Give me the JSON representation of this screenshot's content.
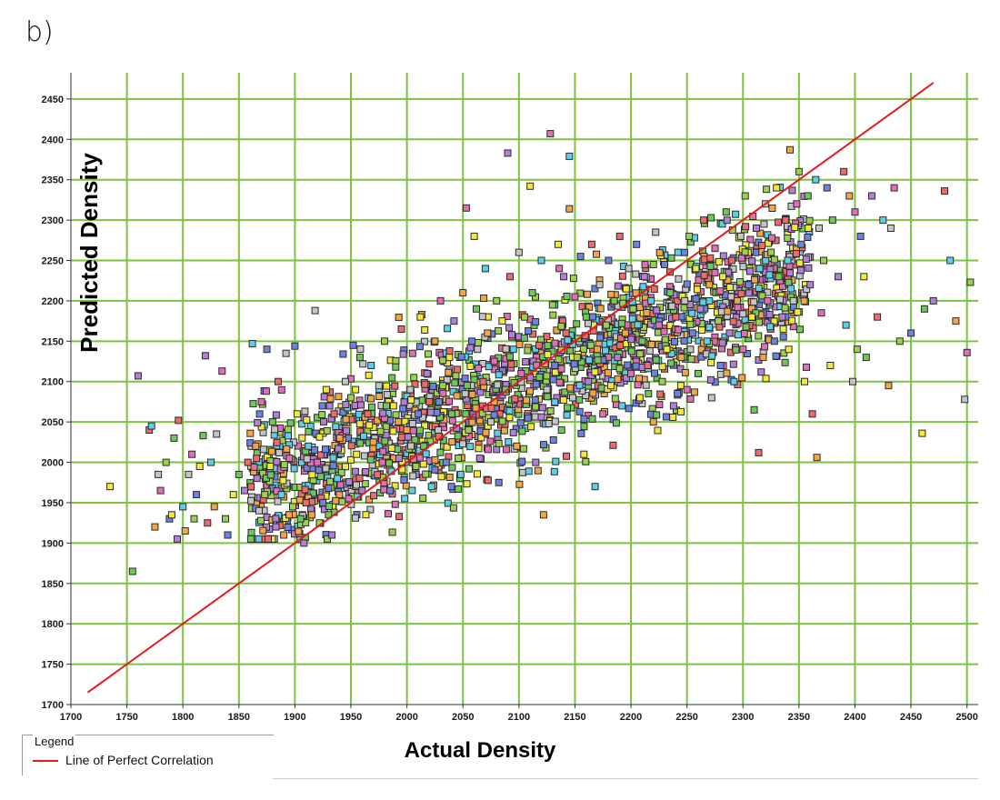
{
  "panel_label": "b)",
  "chart_data": {
    "type": "scatter",
    "title": "",
    "xlabel": "Actual Density",
    "ylabel": "Predicted Density",
    "xlim": [
      1700,
      2510
    ],
    "ylim": [
      1700,
      2460
    ],
    "x_ticks": [
      1700,
      1750,
      1800,
      1850,
      1900,
      1950,
      2000,
      2050,
      2100,
      2150,
      2200,
      2250,
      2300,
      2350,
      2400,
      2450,
      2500
    ],
    "y_ticks": [
      1700,
      1750,
      1800,
      1850,
      1900,
      1950,
      2000,
      2050,
      2100,
      2150,
      2200,
      2250,
      2300,
      2350,
      2400,
      2450
    ],
    "grid": true,
    "grid_color": "#7cc243",
    "point_colors": [
      "#f2e93a",
      "#6fc85a",
      "#b47fd6",
      "#ef6a6a",
      "#5dd0e8",
      "#f3a646",
      "#c3c5c9",
      "#e06fb7",
      "#9ad14f",
      "#6d83e0"
    ],
    "legend": {
      "title": "Legend",
      "placement": "bottom-left",
      "entries": [
        {
          "name": "Line of Perfect Correlation",
          "color": "#e41c1c"
        }
      ]
    },
    "reference_line": {
      "name": "Line of Perfect Correlation",
      "x": [
        1715,
        2470
      ],
      "y": [
        1715,
        2470
      ],
      "color": "#e41c1c"
    },
    "points": [
      [
        1735,
        1970
      ],
      [
        1755,
        1865
      ],
      [
        1760,
        2107
      ],
      [
        1770,
        2040
      ],
      [
        1772,
        2045
      ],
      [
        1775,
        1920
      ],
      [
        1778,
        1985
      ],
      [
        1780,
        1965
      ],
      [
        1785,
        2000
      ],
      [
        1788,
        1930
      ],
      [
        1790,
        1935
      ],
      [
        1792,
        2030
      ],
      [
        1795,
        1905
      ],
      [
        1796,
        2052
      ],
      [
        1800,
        1945
      ],
      [
        1802,
        1915
      ],
      [
        1805,
        1985
      ],
      [
        1808,
        2010
      ],
      [
        1810,
        1930
      ],
      [
        1812,
        1960
      ],
      [
        1815,
        1995
      ],
      [
        1818,
        2033
      ],
      [
        1820,
        2132
      ],
      [
        1822,
        1925
      ],
      [
        1825,
        2000
      ],
      [
        1828,
        1945
      ],
      [
        1830,
        2035
      ],
      [
        1835,
        2113
      ],
      [
        1838,
        1930
      ],
      [
        1840,
        1910
      ],
      [
        1845,
        1960
      ],
      [
        1850,
        1985
      ],
      [
        1855,
        1965
      ],
      [
        1858,
        2000
      ],
      [
        1862,
        2147
      ],
      [
        1865,
        2020
      ],
      [
        1868,
        1940
      ],
      [
        1870,
        2075
      ],
      [
        1873,
        1960
      ],
      [
        1875,
        2140
      ],
      [
        1878,
        1995
      ],
      [
        1880,
        2050
      ],
      [
        1883,
        1920
      ],
      [
        1885,
        2100
      ],
      [
        1888,
        1960
      ],
      [
        1890,
        1910
      ],
      [
        1892,
        2135
      ],
      [
        1895,
        2005
      ],
      [
        1898,
        1945
      ],
      [
        1900,
        2144
      ],
      [
        1902,
        2060
      ],
      [
        1905,
        1930
      ],
      [
        1908,
        1900
      ],
      [
        1910,
        1950
      ],
      [
        1912,
        2020
      ],
      [
        1915,
        1935
      ],
      [
        1918,
        2188
      ],
      [
        1920,
        2000
      ],
      [
        1922,
        1925
      ],
      [
        1925,
        1950
      ],
      [
        1928,
        2090
      ],
      [
        1930,
        1935
      ],
      [
        1933,
        1910
      ],
      [
        1935,
        2060
      ],
      [
        1938,
        1980
      ],
      [
        1940,
        2030
      ],
      [
        1945,
        2100
      ],
      [
        1948,
        1955
      ],
      [
        1950,
        2080
      ],
      [
        1952,
        2145
      ],
      [
        1955,
        2010
      ],
      [
        1958,
        2130
      ],
      [
        1960,
        1965
      ],
      [
        1965,
        2060
      ],
      [
        1968,
        2120
      ],
      [
        1970,
        2025
      ],
      [
        1975,
        2095
      ],
      [
        1978,
        2000
      ],
      [
        1980,
        2150
      ],
      [
        1985,
        1965
      ],
      [
        1988,
        2070
      ],
      [
        1990,
        2118
      ],
      [
        1993,
        2005
      ],
      [
        1995,
        2165
      ],
      [
        1998,
        1955
      ],
      [
        2000,
        2040
      ],
      [
        2003,
        2090
      ],
      [
        2005,
        2135
      ],
      [
        2008,
        1995
      ],
      [
        2010,
        2060
      ],
      [
        2012,
        2180
      ],
      [
        2015,
        2020
      ],
      [
        2018,
        2110
      ],
      [
        2020,
        2075
      ],
      [
        2022,
        1970
      ],
      [
        2025,
        2150
      ],
      [
        2028,
        2040
      ],
      [
        2030,
        2200
      ],
      [
        2032,
        2095
      ],
      [
        2035,
        2000
      ],
      [
        2038,
        2130
      ],
      [
        2040,
        2060
      ],
      [
        2042,
        2175
      ],
      [
        2045,
        2115
      ],
      [
        2048,
        1985
      ],
      [
        2050,
        2210
      ],
      [
        2052,
        2085
      ],
      [
        2053,
        2315
      ],
      [
        2055,
        2040
      ],
      [
        2058,
        2150
      ],
      [
        2060,
        2280
      ],
      [
        2062,
        2190
      ],
      [
        2065,
        2005
      ],
      [
        2068,
        2100
      ],
      [
        2070,
        2240
      ],
      [
        2072,
        2160
      ],
      [
        2075,
        2050
      ],
      [
        2078,
        2125
      ],
      [
        2080,
        2200
      ],
      [
        2082,
        1975
      ],
      [
        2085,
        2175
      ],
      [
        2088,
        2090
      ],
      [
        2090,
        2383
      ],
      [
        2092,
        2230
      ],
      [
        2095,
        2140
      ],
      [
        2098,
        2020
      ],
      [
        2100,
        2260
      ],
      [
        2102,
        2110
      ],
      [
        2105,
        2180
      ],
      [
        2108,
        2055
      ],
      [
        2110,
        2342
      ],
      [
        2112,
        2210
      ],
      [
        2115,
        2000
      ],
      [
        2118,
        2145
      ],
      [
        2120,
        2250
      ],
      [
        2122,
        1935
      ],
      [
        2125,
        2090
      ],
      [
        2128,
        2407
      ],
      [
        2130,
        2195
      ],
      [
        2132,
        2120
      ],
      [
        2135,
        2270
      ],
      [
        2138,
        2040
      ],
      [
        2140,
        2230
      ],
      [
        2142,
        2160
      ],
      [
        2145,
        2379
      ],
      [
        2145,
        2314
      ],
      [
        2148,
        2080
      ],
      [
        2150,
        2205
      ],
      [
        2152,
        2130
      ],
      [
        2155,
        2255
      ],
      [
        2158,
        2010
      ],
      [
        2160,
        2180
      ],
      [
        2162,
        2100
      ],
      [
        2165,
        2270
      ],
      [
        2168,
        1970
      ],
      [
        2170,
        2140
      ],
      [
        2172,
        2220
      ],
      [
        2175,
        2060
      ],
      [
        2178,
        2170
      ],
      [
        2180,
        2250
      ],
      [
        2182,
        2095
      ],
      [
        2185,
        2200
      ],
      [
        2188,
        2130
      ],
      [
        2190,
        2280
      ],
      [
        2192,
        2070
      ],
      [
        2195,
        2160
      ],
      [
        2198,
        2240
      ],
      [
        2200,
        2110
      ],
      [
        2202,
        2190
      ],
      [
        2205,
        2270
      ],
      [
        2208,
        2080
      ],
      [
        2210,
        2150
      ],
      [
        2212,
        2230
      ],
      [
        2215,
        2120
      ],
      [
        2218,
        2200
      ],
      [
        2220,
        2050
      ],
      [
        2222,
        2285
      ],
      [
        2225,
        2170
      ],
      [
        2228,
        2100
      ],
      [
        2230,
        2245
      ],
      [
        2232,
        2140
      ],
      [
        2235,
        2210
      ],
      [
        2238,
        2070
      ],
      [
        2240,
        2180
      ],
      [
        2242,
        2260
      ],
      [
        2245,
        2130
      ],
      [
        2248,
        2200
      ],
      [
        2250,
        2090
      ],
      [
        2252,
        2280
      ],
      [
        2255,
        2160
      ],
      [
        2258,
        2240
      ],
      [
        2260,
        2110
      ],
      [
        2262,
        2190
      ],
      [
        2265,
        2300
      ],
      [
        2268,
        2150
      ],
      [
        2270,
        2220
      ],
      [
        2272,
        2080
      ],
      [
        2275,
        2265
      ],
      [
        2278,
        2175
      ],
      [
        2280,
        2120
      ],
      [
        2282,
        2230
      ],
      [
        2285,
        2310
      ],
      [
        2288,
        2160
      ],
      [
        2290,
        2250
      ],
      [
        2292,
        2100
      ],
      [
        2295,
        2200
      ],
      [
        2298,
        2280
      ],
      [
        2300,
        2140
      ],
      [
        2302,
        2330
      ],
      [
        2305,
        2220
      ],
      [
        2308,
        2180
      ],
      [
        2310,
        2065
      ],
      [
        2312,
        2290
      ],
      [
        2314,
        2012
      ],
      [
        2315,
        2240
      ],
      [
        2318,
        2130
      ],
      [
        2320,
        2320
      ],
      [
        2322,
        2200
      ],
      [
        2325,
        2260
      ],
      [
        2328,
        2150
      ],
      [
        2330,
        2340
      ],
      [
        2332,
        2230
      ],
      [
        2335,
        2180
      ],
      [
        2338,
        2300
      ],
      [
        2340,
        2250
      ],
      [
        2342,
        2387
      ],
      [
        2345,
        2200
      ],
      [
        2348,
        2320
      ],
      [
        2350,
        2360
      ],
      [
        2352,
        2270
      ],
      [
        2355,
        2100
      ],
      [
        2358,
        2330
      ],
      [
        2360,
        2220
      ],
      [
        2362,
        2060
      ],
      [
        2365,
        2350
      ],
      [
        2366,
        2006
      ],
      [
        2368,
        2290
      ],
      [
        2370,
        2185
      ],
      [
        2372,
        2250
      ],
      [
        2375,
        2340
      ],
      [
        2378,
        2120
      ],
      [
        2380,
        2300
      ],
      [
        2385,
        2230
      ],
      [
        2390,
        2360
      ],
      [
        2392,
        2170
      ],
      [
        2395,
        2330
      ],
      [
        2398,
        2100
      ],
      [
        2400,
        2310
      ],
      [
        2402,
        2140
      ],
      [
        2405,
        2280
      ],
      [
        2408,
        2230
      ],
      [
        2410,
        2130
      ],
      [
        2415,
        2330
      ],
      [
        2420,
        2180
      ],
      [
        2425,
        2300
      ],
      [
        2430,
        2095
      ],
      [
        2432,
        2290
      ],
      [
        2435,
        2340
      ],
      [
        2440,
        2150
      ],
      [
        2450,
        2160
      ],
      [
        2460,
        2036
      ],
      [
        2462,
        2190
      ],
      [
        2470,
        2200
      ],
      [
        2480,
        2336
      ],
      [
        2485,
        2250
      ],
      [
        2490,
        2175
      ],
      [
        2498,
        2078
      ],
      [
        2500,
        2136
      ],
      [
        2503,
        2223
      ]
    ]
  }
}
